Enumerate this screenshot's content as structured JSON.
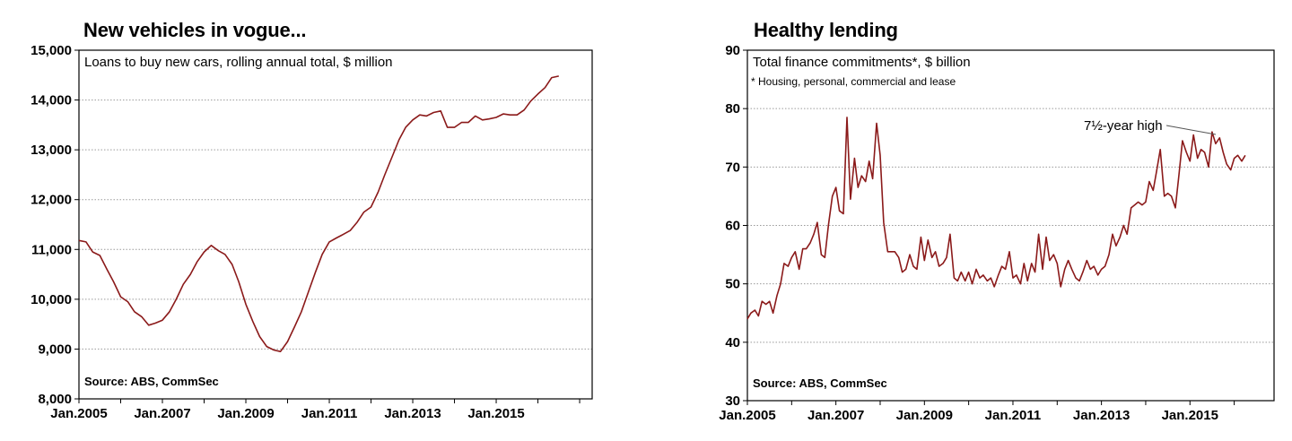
{
  "colors": {
    "line": "#8b1a1a",
    "grid": "#9a9a9a",
    "frame": "#000000"
  },
  "chart_data": [
    {
      "type": "line",
      "title": "New vehicles in vogue...",
      "subtitle": "Loans to buy new cars, rolling annual total, $ million",
      "source": "Source: ABS, CommSec",
      "xlabel": "",
      "ylabel": "",
      "ylim": [
        8000,
        15000
      ],
      "xlim": [
        2005.0,
        2017.3
      ],
      "yticks": [
        8000,
        9000,
        10000,
        11000,
        12000,
        13000,
        14000,
        15000
      ],
      "ytick_labels": [
        "8,000",
        "9,000",
        "10,000",
        "11,000",
        "12,000",
        "13,000",
        "14,000",
        "15,000"
      ],
      "xticks": [
        2005,
        2007,
        2009,
        2011,
        2013,
        2015
      ],
      "xtick_labels": [
        "Jan.2005",
        "Jan.2007",
        "Jan.2009",
        "Jan.2011",
        "Jan.2013",
        "Jan.2015"
      ],
      "grid": "horizontal dotted",
      "series": [
        {
          "x": [
            2005.0,
            2005.17,
            2005.33,
            2005.5,
            2005.67,
            2005.83,
            2006.0,
            2006.17,
            2006.33,
            2006.5,
            2006.67,
            2006.83,
            2007.0,
            2007.17,
            2007.33,
            2007.5,
            2007.67,
            2007.83,
            2008.0,
            2008.17,
            2008.33,
            2008.5,
            2008.67,
            2008.83,
            2009.0,
            2009.17,
            2009.33,
            2009.5,
            2009.67,
            2009.83,
            2010.0,
            2010.17,
            2010.33,
            2010.5,
            2010.67,
            2010.83,
            2011.0,
            2011.17,
            2011.33,
            2011.5,
            2011.67,
            2011.83,
            2012.0,
            2012.17,
            2012.33,
            2012.5,
            2012.67,
            2012.83,
            2013.0,
            2013.17,
            2013.33,
            2013.5,
            2013.67,
            2013.83,
            2014.0,
            2014.17,
            2014.33,
            2014.5,
            2014.67,
            2014.83,
            2015.0,
            2015.17,
            2015.33,
            2015.5,
            2015.67,
            2015.83,
            2016.0,
            2016.17,
            2016.33,
            2016.5
          ],
          "y": [
            11180,
            11150,
            10950,
            10880,
            10600,
            10350,
            10050,
            9950,
            9750,
            9650,
            9480,
            9520,
            9580,
            9750,
            10000,
            10300,
            10500,
            10750,
            10950,
            11080,
            10980,
            10900,
            10700,
            10350,
            9900,
            9550,
            9250,
            9050,
            8980,
            8950,
            9150,
            9450,
            9750,
            10150,
            10550,
            10900,
            11150,
            11230,
            11300,
            11380,
            11550,
            11750,
            11850,
            12150,
            12500,
            12850,
            13200,
            13450,
            13600,
            13700,
            13680,
            13750,
            13780,
            13450,
            13450,
            13550,
            13550,
            13680,
            13600,
            13620,
            13650,
            13720,
            13700,
            13700,
            13800,
            13980,
            14120,
            14250,
            14450,
            14480
          ]
        }
      ]
    },
    {
      "type": "line",
      "title": "Healthy lending",
      "subtitle": "Total finance commitments*, $ billion",
      "footnote": "* Housing, personal, commercial and lease",
      "source": "Source: ABS, CommSec",
      "annotation": "7½-year high",
      "xlabel": "",
      "ylabel": "",
      "ylim": [
        30,
        90
      ],
      "xlim": [
        2005.0,
        2016.9
      ],
      "yticks": [
        30,
        40,
        50,
        60,
        70,
        80,
        90
      ],
      "ytick_labels": [
        "30",
        "40",
        "50",
        "60",
        "70",
        "80",
        "90"
      ],
      "xticks": [
        2005,
        2007,
        2009,
        2011,
        2013,
        2015
      ],
      "xtick_labels": [
        "Jan.2005",
        "Jan.2007",
        "Jan.2009",
        "Jan.2011",
        "Jan.2013",
        "Jan.2015"
      ],
      "grid": "horizontal dotted",
      "series": [
        {
          "x": [
            2005.0,
            2005.08,
            2005.17,
            2005.25,
            2005.33,
            2005.42,
            2005.5,
            2005.58,
            2005.67,
            2005.75,
            2005.83,
            2005.92,
            2006.0,
            2006.08,
            2006.17,
            2006.25,
            2006.33,
            2006.42,
            2006.5,
            2006.58,
            2006.67,
            2006.75,
            2006.83,
            2006.92,
            2007.0,
            2007.08,
            2007.17,
            2007.25,
            2007.33,
            2007.42,
            2007.5,
            2007.58,
            2007.67,
            2007.75,
            2007.83,
            2007.92,
            2008.0,
            2008.08,
            2008.17,
            2008.25,
            2008.33,
            2008.42,
            2008.5,
            2008.58,
            2008.67,
            2008.75,
            2008.83,
            2008.92,
            2009.0,
            2009.08,
            2009.17,
            2009.25,
            2009.33,
            2009.42,
            2009.5,
            2009.58,
            2009.67,
            2009.75,
            2009.83,
            2009.92,
            2010.0,
            2010.08,
            2010.17,
            2010.25,
            2010.33,
            2010.42,
            2010.5,
            2010.58,
            2010.67,
            2010.75,
            2010.83,
            2010.92,
            2011.0,
            2011.08,
            2011.17,
            2011.25,
            2011.33,
            2011.42,
            2011.5,
            2011.58,
            2011.67,
            2011.75,
            2011.83,
            2011.92,
            2012.0,
            2012.08,
            2012.17,
            2012.25,
            2012.33,
            2012.42,
            2012.5,
            2012.58,
            2012.67,
            2012.75,
            2012.83,
            2012.92,
            2013.0,
            2013.08,
            2013.17,
            2013.25,
            2013.33,
            2013.42,
            2013.5,
            2013.58,
            2013.67,
            2013.75,
            2013.83,
            2013.92,
            2014.0,
            2014.08,
            2014.17,
            2014.25,
            2014.33,
            2014.42,
            2014.5,
            2014.58,
            2014.67,
            2014.75,
            2014.83,
            2014.92,
            2015.0,
            2015.08,
            2015.17,
            2015.25,
            2015.33,
            2015.42,
            2015.5,
            2015.58,
            2015.67,
            2015.75,
            2015.83,
            2015.92,
            2016.0,
            2016.08,
            2016.17,
            2016.25
          ],
          "y": [
            44,
            45,
            45.5,
            44.5,
            47,
            46.5,
            47,
            45,
            48,
            50,
            53.5,
            53,
            54.5,
            55.5,
            52.5,
            56,
            56,
            57,
            58.5,
            60.5,
            55,
            54.5,
            60,
            65,
            66.5,
            62.5,
            62,
            78.5,
            64.5,
            71.5,
            66.5,
            68.5,
            67.5,
            71,
            68,
            77.5,
            72,
            60.5,
            55.5,
            55.5,
            55.5,
            54.5,
            52,
            52.5,
            55,
            53,
            52.5,
            58,
            54,
            57.5,
            54.5,
            55.5,
            53,
            53.5,
            54.5,
            58.5,
            51,
            50.5,
            52,
            50.5,
            52,
            50,
            52.5,
            51,
            51.5,
            50.5,
            51,
            49.5,
            51.5,
            53,
            52.5,
            55.5,
            51,
            51.5,
            50,
            53.5,
            50.5,
            53.5,
            52,
            58.5,
            52.5,
            58,
            54,
            55,
            53.5,
            49.5,
            52.5,
            54,
            52.5,
            51,
            50.5,
            52,
            54,
            52.5,
            53,
            51.5,
            52.5,
            53,
            55,
            58.5,
            56.5,
            58,
            60,
            58.5,
            63,
            63.5,
            64,
            63.5,
            64,
            67.5,
            66,
            69.5,
            73,
            65,
            65.5,
            65,
            63,
            68.5,
            74.5,
            72.5,
            71,
            75.5,
            71.5,
            73,
            72.5,
            70,
            76,
            74,
            75,
            72.5,
            70.5,
            69.5,
            71.5,
            72,
            71,
            72
          ]
        }
      ]
    }
  ]
}
